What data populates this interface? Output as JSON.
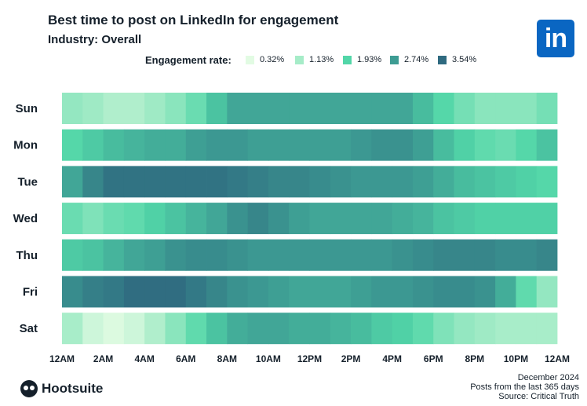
{
  "header": {
    "title": "Best time to post on LinkedIn for engagement",
    "subtitle": "Industry: Overall",
    "logo_text": "in"
  },
  "legend": {
    "title": "Engagement rate:",
    "items": [
      {
        "label": "0.32%",
        "color": "#e2fbe3"
      },
      {
        "label": "1.13%",
        "color": "#a6ecc8"
      },
      {
        "label": "1.93%",
        "color": "#52d6a8"
      },
      {
        "label": "2.74%",
        "color": "#3d9c93"
      },
      {
        "label": "3.54%",
        "color": "#2f6a80"
      }
    ]
  },
  "chart_data": {
    "type": "heatmap",
    "title": "Best time to post on LinkedIn for engagement",
    "subtitle": "Industry: Overall",
    "rows": [
      "Sun",
      "Mon",
      "Tue",
      "Wed",
      "Thu",
      "Fri",
      "Sat"
    ],
    "columns": [
      "12AM",
      "1AM",
      "2AM",
      "3AM",
      "4AM",
      "5AM",
      "6AM",
      "7AM",
      "8AM",
      "9AM",
      "10AM",
      "11AM",
      "12PM",
      "1PM",
      "2PM",
      "3PM",
      "4PM",
      "5PM",
      "6PM",
      "7PM",
      "8PM",
      "9PM",
      "10PM",
      "11PM"
    ],
    "x_tick_labels": [
      "12AM",
      "2AM",
      "4AM",
      "6AM",
      "8AM",
      "10AM",
      "12PM",
      "2PM",
      "4PM",
      "6PM",
      "8PM",
      "10PM",
      "12AM"
    ],
    "color_scale": {
      "stops": [
        0.32,
        1.13,
        1.93,
        2.74,
        3.54
      ],
      "colors": [
        "#e2fbe3",
        "#a6ecc8",
        "#52d6a8",
        "#3d9c93",
        "#2f6a80"
      ],
      "unit": "%"
    },
    "values": [
      [
        1.3,
        1.2,
        1.0,
        1.0,
        1.2,
        1.4,
        1.7,
        2.2,
        2.6,
        2.6,
        2.6,
        2.6,
        2.6,
        2.6,
        2.6,
        2.6,
        2.6,
        2.3,
        1.9,
        1.6,
        1.4,
        1.4,
        1.4,
        1.6
      ],
      [
        1.9,
        2.1,
        2.3,
        2.4,
        2.5,
        2.5,
        2.7,
        2.8,
        2.8,
        2.7,
        2.7,
        2.7,
        2.7,
        2.7,
        2.8,
        2.9,
        2.9,
        2.7,
        2.3,
        2.0,
        1.8,
        1.7,
        1.9,
        2.2
      ],
      [
        2.6,
        3.1,
        3.4,
        3.4,
        3.4,
        3.4,
        3.4,
        3.4,
        3.3,
        3.2,
        3.1,
        3.1,
        3.0,
        2.9,
        2.8,
        2.8,
        2.8,
        2.7,
        2.5,
        2.3,
        2.2,
        2.1,
        2.0,
        1.9
      ],
      [
        1.7,
        1.5,
        1.7,
        1.8,
        2.0,
        2.2,
        2.4,
        2.6,
        2.9,
        3.1,
        2.9,
        2.7,
        2.6,
        2.6,
        2.6,
        2.6,
        2.5,
        2.4,
        2.2,
        2.1,
        2.0,
        2.0,
        2.0,
        2.0
      ],
      [
        2.1,
        2.2,
        2.4,
        2.6,
        2.7,
        2.9,
        3.0,
        3.0,
        2.9,
        2.8,
        2.8,
        2.8,
        2.8,
        2.8,
        2.8,
        2.8,
        2.9,
        3.0,
        3.1,
        3.1,
        3.1,
        3.0,
        3.0,
        3.1
      ],
      [
        3.0,
        3.2,
        3.3,
        3.5,
        3.5,
        3.5,
        3.3,
        3.1,
        2.9,
        2.8,
        2.7,
        2.6,
        2.6,
        2.6,
        2.7,
        2.8,
        2.8,
        2.9,
        3.0,
        3.0,
        2.9,
        2.5,
        1.8,
        1.3
      ],
      [
        1.1,
        0.6,
        0.4,
        0.6,
        1.0,
        1.4,
        1.8,
        2.2,
        2.5,
        2.6,
        2.6,
        2.5,
        2.5,
        2.4,
        2.3,
        2.1,
        2.0,
        1.8,
        1.5,
        1.3,
        1.2,
        1.1,
        1.1,
        1.1
      ]
    ],
    "legend_placement": "top",
    "grid": false
  },
  "footer": {
    "brand": "Hootsuite",
    "date": "December 2024",
    "note": "Posts from the last 365 days",
    "source": "Source: Critical Truth"
  }
}
